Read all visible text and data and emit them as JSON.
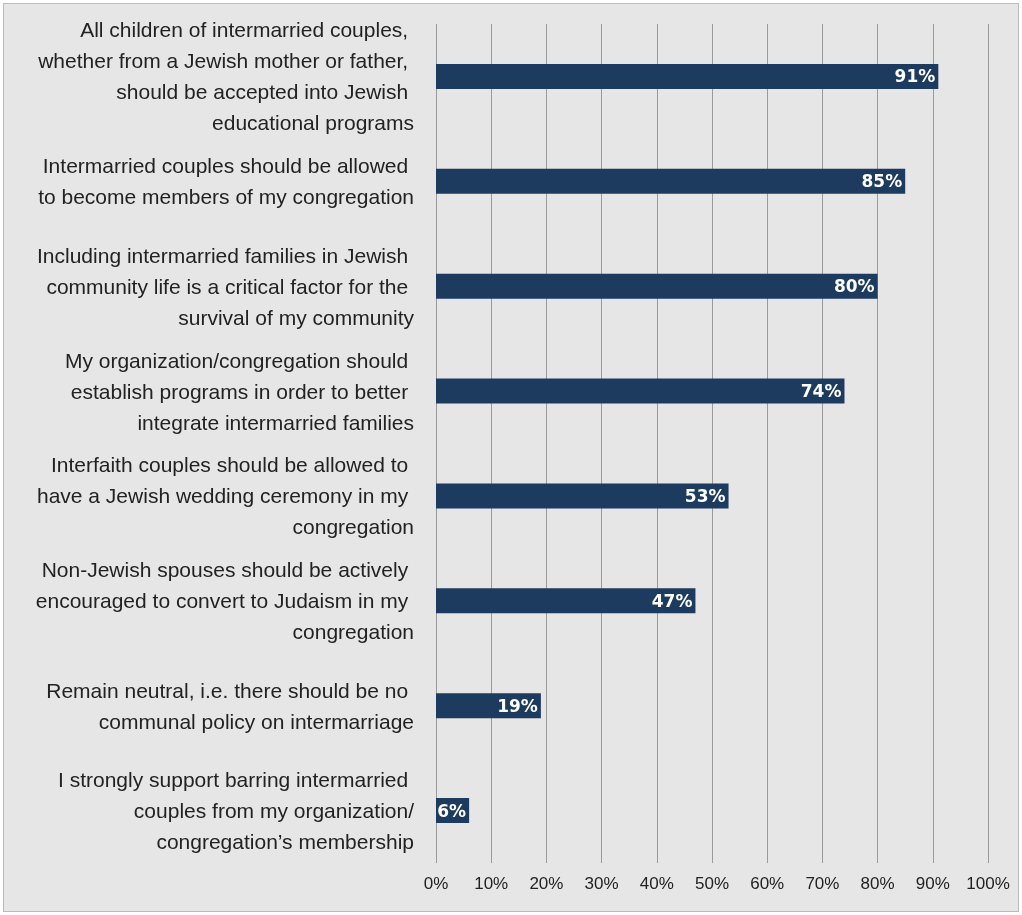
{
  "chart_data": {
    "type": "bar",
    "orientation": "horizontal",
    "categories": [
      "All children of intermarried couples, whether from a Jewish mother or father, should be accepted into Jewish educational programs",
      "Intermarried couples should be allowed to become members of my congregation",
      "Including intermarried families in Jewish community life is a critical factor for the survival of my community",
      "My organization/congregation should establish programs in order to better integrate intermarried families",
      "Interfaith couples should be allowed to have a Jewish wedding ceremony in my congregation",
      "Non-Jewish spouses should be actively encouraged to convert to Judaism in my congregation",
      "Remain neutral, i.e. there should be no communal policy on intermarriage",
      "I strongly support barring intermarried couples from my organization/congregation’s membership"
    ],
    "values": [
      91,
      85,
      80,
      74,
      53,
      47,
      19,
      6
    ],
    "value_labels": [
      "91%",
      "85%",
      "80%",
      "74%",
      "53%",
      "47%",
      "19%",
      "6%"
    ],
    "color": "#1d3a5f",
    "xlim": [
      0,
      100
    ],
    "xticks": [
      {
        "value": 0,
        "label": "0%"
      },
      {
        "value": 10,
        "label": "10%"
      },
      {
        "value": 20,
        "label": "20%"
      },
      {
        "value": 30,
        "label": "30%"
      },
      {
        "value": 40,
        "label": "40%"
      },
      {
        "value": 50,
        "label": "50%"
      },
      {
        "value": 60,
        "label": "60%"
      },
      {
        "value": 70,
        "label": "70%"
      },
      {
        "value": 80,
        "label": "80%"
      },
      {
        "value": 90,
        "label": "90%"
      },
      {
        "value": 100,
        "label": "100%"
      }
    ],
    "grid": "x"
  }
}
